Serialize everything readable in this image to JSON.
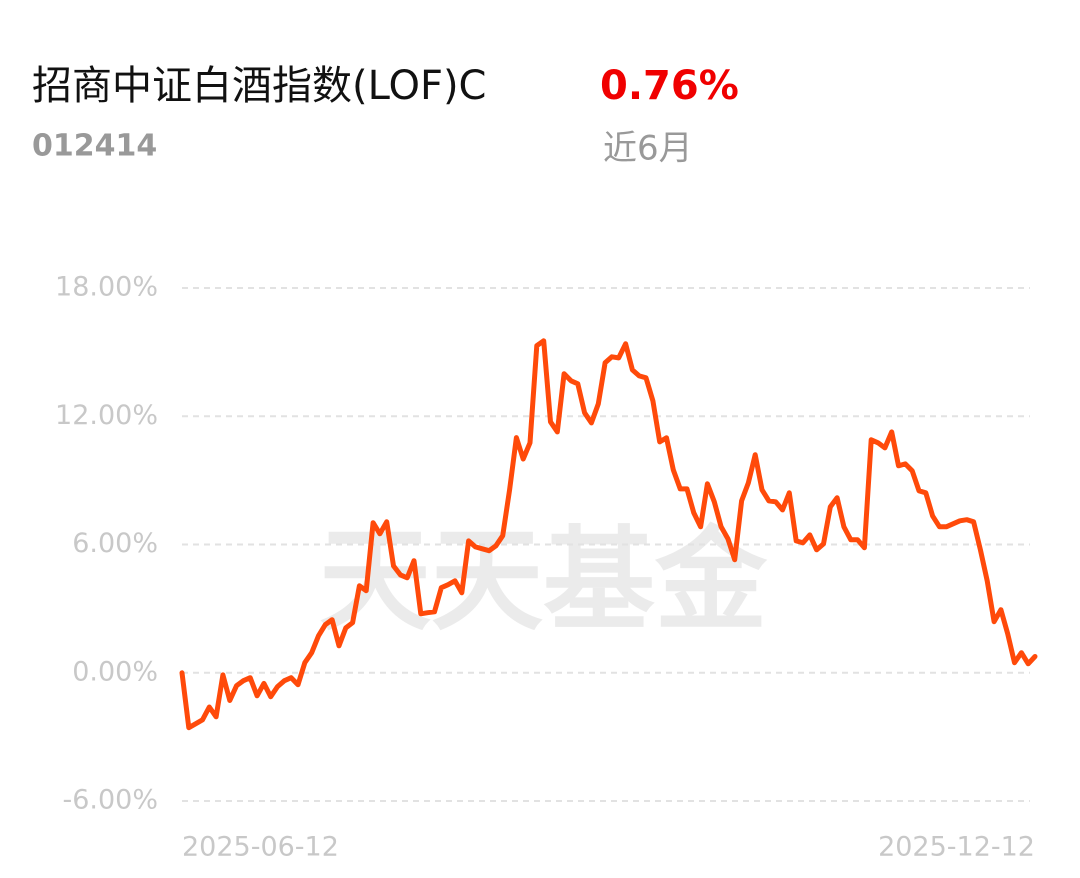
{
  "header": {
    "title": "招商中证白酒指数(LOF)C",
    "code": "012414",
    "return": "0.76%",
    "period": "近6月"
  },
  "chart_data": {
    "type": "line",
    "watermark": "天天基金",
    "categories": [
      "2025-06-12",
      null,
      null,
      null,
      null,
      null,
      null,
      null,
      null,
      null,
      null,
      null,
      null,
      null,
      null,
      null,
      null,
      null,
      null,
      null,
      null,
      null,
      null,
      null,
      null,
      null,
      null,
      null,
      null,
      null,
      null,
      null,
      null,
      null,
      null,
      null,
      null,
      null,
      null,
      null,
      null,
      null,
      null,
      null,
      null,
      null,
      null,
      null,
      null,
      null,
      null,
      null,
      null,
      null,
      null,
      null,
      null,
      null,
      null,
      null,
      null,
      null,
      null,
      null,
      null,
      null,
      null,
      null,
      null,
      null,
      null,
      null,
      null,
      null,
      null,
      null,
      null,
      null,
      null,
      null,
      null,
      null,
      null,
      null,
      null,
      null,
      null,
      null,
      null,
      null,
      null,
      null,
      null,
      null,
      null,
      null,
      null,
      null,
      null,
      null,
      null,
      null,
      null,
      null,
      null,
      null,
      null,
      null,
      null,
      null,
      null,
      null,
      null,
      null,
      null,
      null,
      null,
      null,
      null,
      null,
      null,
      null,
      null,
      null,
      null,
      "2025-12-12"
    ],
    "series": [
      {
        "color": "#ff4a0a",
        "values": [
          0,
          -2.57,
          -2.39,
          -2.2,
          -1.6,
          -2.06,
          -0.1,
          -1.3,
          -0.6,
          -0.37,
          -0.23,
          -1.08,
          -0.5,
          -1.12,
          -0.65,
          -0.37,
          -0.23,
          -0.56,
          0.47,
          0.94,
          1.73,
          2.25,
          2.48,
          1.26,
          2.1,
          2.34,
          4.07,
          3.84,
          7.02,
          6.5,
          7.06,
          5.0,
          4.58,
          4.44,
          5.24,
          2.76,
          2.81,
          2.85,
          3.98,
          4.12,
          4.3,
          3.74,
          6.17,
          5.89,
          5.8,
          5.71,
          5.94,
          6.41,
          8.56,
          11.0,
          10.0,
          10.76,
          15.3,
          15.53,
          11.74,
          11.27,
          13.99,
          13.66,
          13.52,
          12.16,
          11.69,
          12.58,
          14.5,
          14.78,
          14.73,
          15.39,
          14.17,
          13.89,
          13.8,
          12.72,
          10.8,
          10.99,
          9.49,
          8.6,
          8.6,
          7.48,
          6.83,
          8.84,
          8.0,
          6.83,
          6.27,
          5.29,
          8.04,
          8.89,
          10.2,
          8.56,
          8.04,
          8.0,
          7.62,
          8.42,
          6.17,
          6.08,
          6.45,
          5.75,
          6.03,
          7.76,
          8.19,
          6.83,
          6.22,
          6.22,
          5.85,
          10.9,
          10.76,
          10.52,
          11.27,
          9.68,
          9.77,
          9.45,
          8.51,
          8.42,
          7.34,
          6.83,
          6.83,
          6.97,
          7.11,
          7.16,
          7.06,
          5.75,
          4.3,
          2.39,
          2.95,
          1.82,
          0.47,
          0.94,
          0.42,
          0.76
        ]
      }
    ],
    "ylim": [
      -6,
      18
    ],
    "yticks": [
      {
        "value": 18,
        "label": "18.00%"
      },
      {
        "value": 12,
        "label": "12.00%"
      },
      {
        "value": 6,
        "label": "6.00%"
      },
      {
        "value": 0,
        "label": "0.00%"
      },
      {
        "value": -6,
        "label": "-6.00%"
      }
    ],
    "grid": true
  }
}
